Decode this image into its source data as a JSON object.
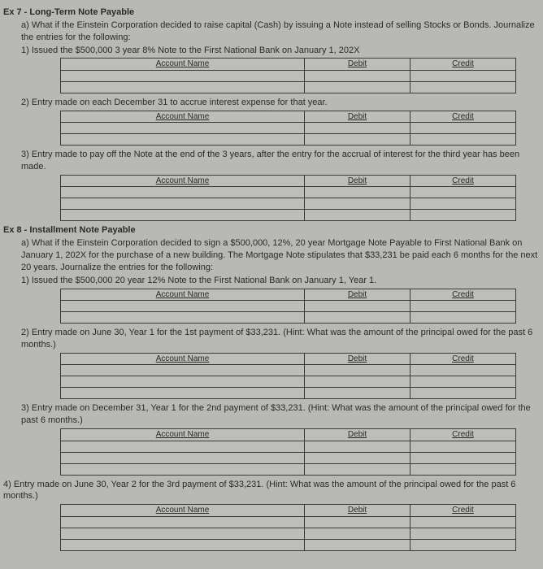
{
  "ex7": {
    "title": "Ex 7 - Long-Term Note Payable",
    "a_intro": "a) What if the Einstein Corporation decided to raise capital (Cash) by issuing a Note instead of selling Stocks or Bonds. Journalize the entries for the following:",
    "p1": "1) Issued the $500,000 3 year 8% Note to the First National Bank on January 1, 202X",
    "p2": "2) Entry made on each December 31 to accrue interest expense for that year.",
    "p3": "3) Entry made to pay off the Note at the end of the 3 years, after the entry for the accrual of interest for the third year has been made."
  },
  "ex8": {
    "title": "Ex 8 - Installment Note Payable",
    "a_intro": "a) What if the Einstein Corporation decided to sign a $500,000, 12%, 20 year Mortgage Note Payable to First National Bank on January 1, 202X for the purchase of a new building. The Mortgage Note stipulates that $33,231 be paid each 6 months for the next 20 years. Journalize the entries for the following:",
    "p1": "1) Issued the $500,000 20 year 12% Note to the First National Bank on January 1, Year 1.",
    "p2": "2) Entry made on June 30, Year 1 for the 1st payment of $33,231. (Hint: What was the amount of the principal owed for the past 6 months.)",
    "p3": "3) Entry made on December 31, Year 1 for the 2nd payment of $33,231. (Hint: What was the amount of the principal owed for the past 6 months.)",
    "p4": "4) Entry made on June 30, Year 2 for the 3rd payment of $33,231. (Hint: What was the amount of the principal owed for the past 6 months.)"
  },
  "headers": {
    "account": "Account Name",
    "debit": "Debit",
    "credit": "Credit"
  }
}
